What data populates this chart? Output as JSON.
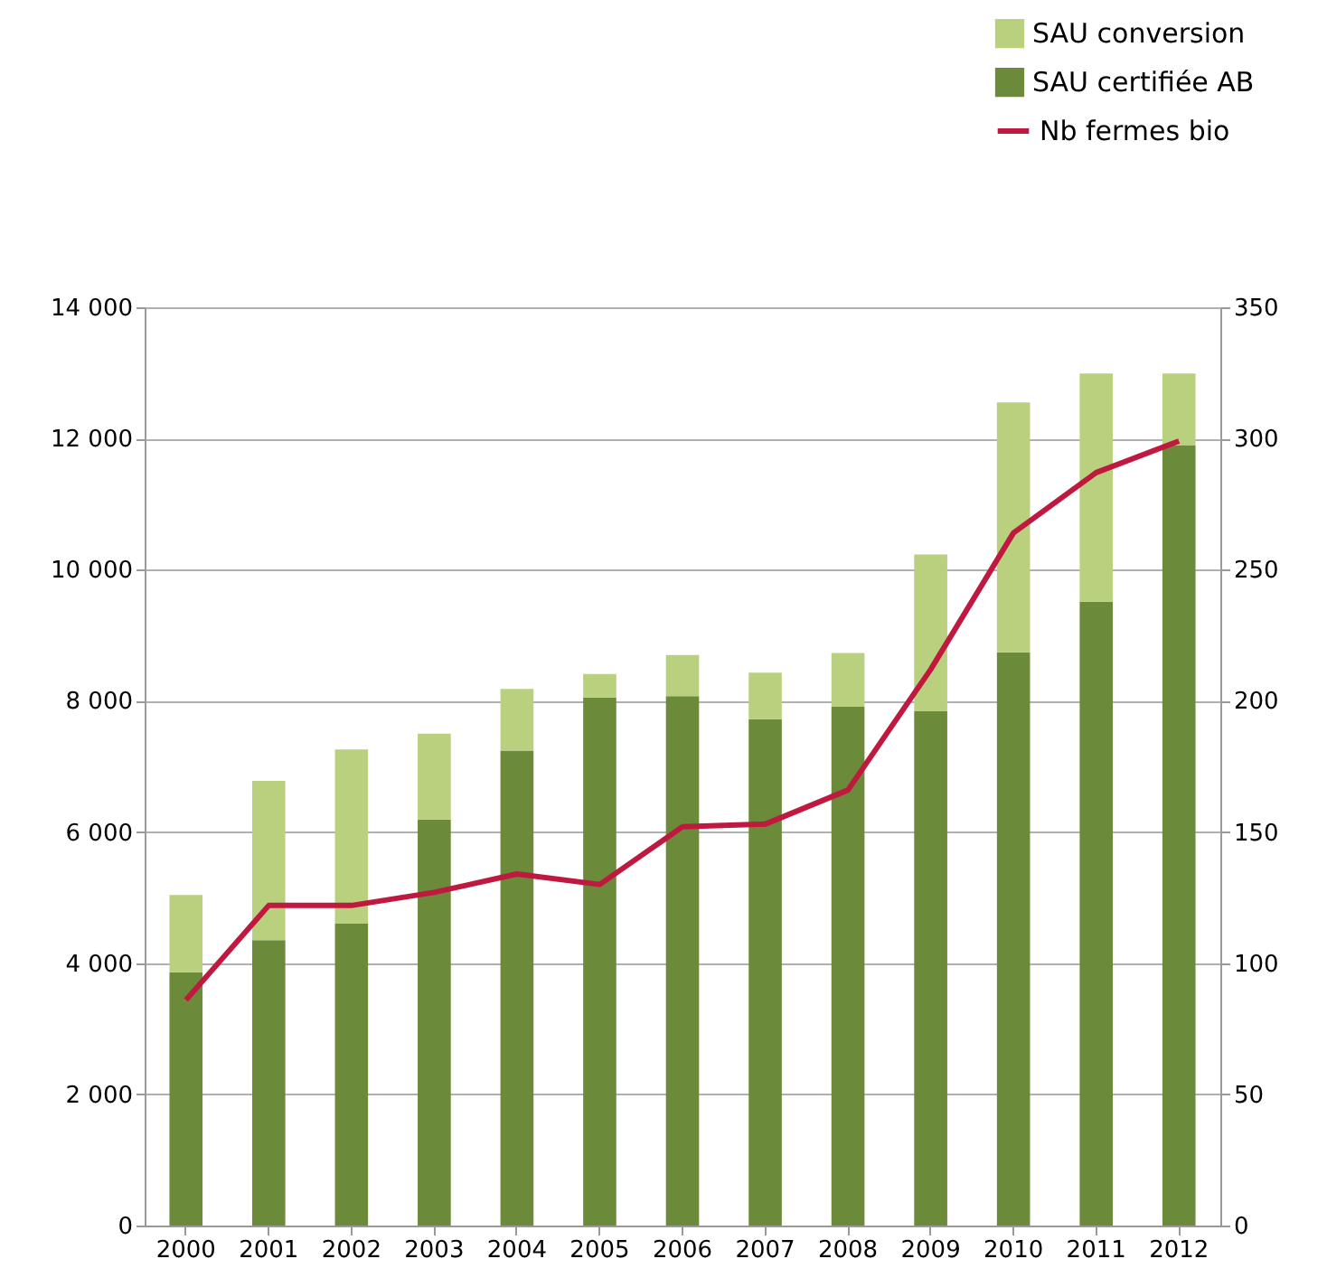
{
  "chart_data": {
    "type": "bar",
    "stacked": true,
    "categories": [
      "2000",
      "2001",
      "2002",
      "2003",
      "2004",
      "2005",
      "2006",
      "2007",
      "2008",
      "2009",
      "2010",
      "2011",
      "2012"
    ],
    "series": [
      {
        "name": "SAU certifiée AB",
        "color": "#6b8a3a",
        "values": [
          3860,
          4350,
          4610,
          6190,
          7240,
          8050,
          8070,
          7720,
          7910,
          7840,
          8740,
          9510,
          11900
        ]
      },
      {
        "name": "SAU conversion",
        "color": "#b9d07f",
        "values": [
          1180,
          2430,
          2650,
          1310,
          940,
          360,
          630,
          710,
          820,
          2390,
          3810,
          3480,
          1090
        ]
      },
      {
        "name": "Nb fermes bio",
        "type": "line",
        "axis": "y2",
        "color": "#c0193f",
        "values": [
          86,
          122,
          122,
          127,
          134,
          130,
          152,
          153,
          166,
          212,
          264,
          287,
          299
        ]
      }
    ],
    "ylim": [
      0,
      14000
    ],
    "yticks": [
      {
        "value": 0,
        "label": "0"
      },
      {
        "value": 2000,
        "label": "2 000"
      },
      {
        "value": 4000,
        "label": "4 000"
      },
      {
        "value": 6000,
        "label": "6 000"
      },
      {
        "value": 8000,
        "label": "8 000"
      },
      {
        "value": 10000,
        "label": "10 000"
      },
      {
        "value": 12000,
        "label": "12 000"
      },
      {
        "value": 14000,
        "label": "14 000"
      }
    ],
    "y2lim": [
      0,
      350
    ],
    "y2ticks": [
      0,
      50,
      100,
      150,
      200,
      250,
      300,
      350
    ],
    "grid": "y",
    "legend": "top right",
    "marker": "none",
    "line_style": "solid"
  }
}
